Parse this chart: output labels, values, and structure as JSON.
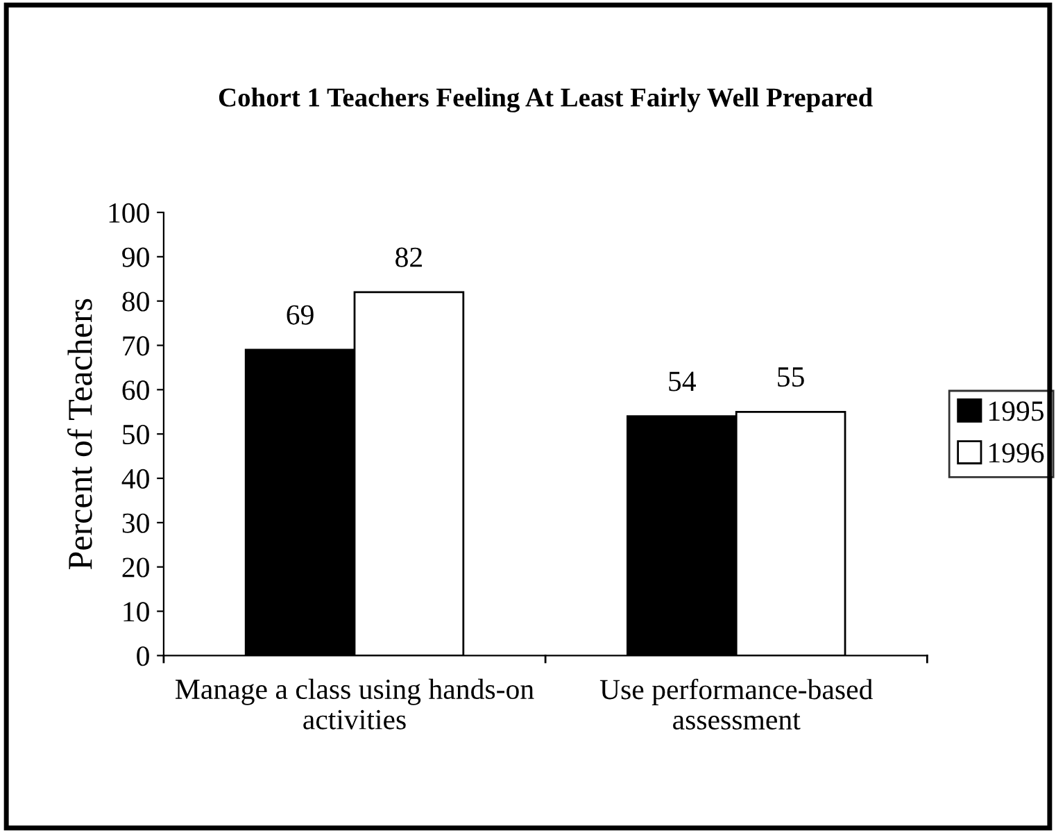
{
  "chart_data": {
    "type": "bar",
    "title": "Cohort 1 Teachers Feeling At Least Fairly Well Prepared",
    "ylabel": "Percent of Teachers",
    "categories": [
      "Manage a class using hands-on\nactivities",
      "Use performance-based\nassessment"
    ],
    "series": [
      {
        "name": "1995",
        "color": "#000000",
        "values": [
          69,
          54
        ]
      },
      {
        "name": "1996",
        "color": "#ffffff",
        "values": [
          82,
          55
        ]
      }
    ],
    "ylim": [
      0,
      100
    ],
    "yticks": [
      0,
      10,
      20,
      30,
      40,
      50,
      60,
      70,
      80,
      90,
      100
    ],
    "grid": false,
    "legend": "right",
    "data_labels": true
  }
}
